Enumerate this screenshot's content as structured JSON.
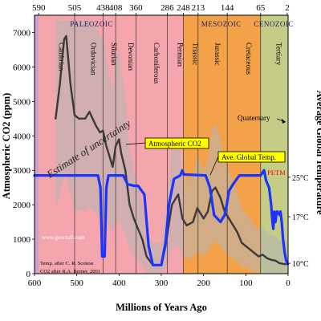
{
  "chart_data": {
    "type": "line",
    "x_axis": {
      "label": "Millions of Years Ago",
      "range": [
        600,
        0
      ],
      "ticks": [
        "600",
        "500",
        "400",
        "300",
        "200",
        "100",
        "0"
      ]
    },
    "y_axis_left": {
      "label": "Atmospheric CO2 (ppm)",
      "range": [
        0,
        7500
      ],
      "ticks": [
        "0",
        "1000",
        "2000",
        "3000",
        "4000",
        "5000",
        "6000",
        "7000"
      ]
    },
    "y_axis_right": {
      "label": "Average Global Temperature",
      "ticks": [
        {
          "label": "25°C",
          "at_ppm": 2800
        },
        {
          "label": "17°C",
          "at_ppm": 1650
        },
        {
          "label": "10°C",
          "at_ppm": 300
        }
      ]
    },
    "top_ticks": [
      {
        "label": "590",
        "x": 590
      },
      {
        "label": "505",
        "x": 505
      },
      {
        "label": "438",
        "x": 438
      },
      {
        "label": "408",
        "x": 408
      },
      {
        "label": "360",
        "x": 360
      },
      {
        "label": "286",
        "x": 286
      },
      {
        "label": "248",
        "x": 248
      },
      {
        "label": "213",
        "x": 213
      },
      {
        "label": "144",
        "x": 144
      },
      {
        "label": "65",
        "x": 65
      },
      {
        "label": "2",
        "x": 2
      }
    ],
    "eras": [
      {
        "label": "PALEOZOIC",
        "from": 590,
        "to": 248,
        "color": "#f4a6ac"
      },
      {
        "label": "MESOZOIC",
        "from": 248,
        "to": 65,
        "color": "#f4a24a"
      },
      {
        "label": "CENOZOIC",
        "from": 65,
        "to": 2,
        "color": "#c4cc86"
      }
    ],
    "periods": [
      {
        "label": "Cambrian",
        "from": 590,
        "to": 505
      },
      {
        "label": "Ordovician",
        "from": 505,
        "to": 438
      },
      {
        "label": "Silurian",
        "from": 438,
        "to": 408
      },
      {
        "label": "Devonian",
        "from": 408,
        "to": 360
      },
      {
        "label": "Carboniferous",
        "from": 360,
        "to": 286
      },
      {
        "label": "Permian",
        "from": 286,
        "to": 248
      },
      {
        "label": "Triassic",
        "from": 248,
        "to": 213
      },
      {
        "label": "Jurassic",
        "from": 213,
        "to": 144
      },
      {
        "label": "Cretaceous",
        "from": 144,
        "to": 65
      },
      {
        "label": "Tertiary",
        "from": 65,
        "to": 2
      }
    ],
    "series": [
      {
        "name": "Atmospheric CO2",
        "color": "#3a3a3a",
        "points": [
          [
            550,
            4500
          ],
          [
            540,
            5500
          ],
          [
            530,
            6800
          ],
          [
            525,
            6900
          ],
          [
            515,
            5500
          ],
          [
            505,
            4600
          ],
          [
            495,
            4500
          ],
          [
            480,
            4500
          ],
          [
            470,
            4700
          ],
          [
            455,
            4300
          ],
          [
            445,
            4100
          ],
          [
            438,
            4150
          ],
          [
            430,
            3700
          ],
          [
            425,
            3500
          ],
          [
            415,
            3100
          ],
          [
            408,
            3700
          ],
          [
            400,
            3900
          ],
          [
            395,
            3500
          ],
          [
            385,
            3000
          ],
          [
            375,
            2000
          ],
          [
            365,
            1600
          ],
          [
            355,
            1300
          ],
          [
            345,
            1000
          ],
          [
            335,
            500
          ],
          [
            320,
            250
          ],
          [
            300,
            250
          ],
          [
            290,
            800
          ],
          [
            285,
            1200
          ],
          [
            275,
            2000
          ],
          [
            260,
            2300
          ],
          [
            250,
            1600
          ],
          [
            240,
            1400
          ],
          [
            225,
            1500
          ],
          [
            215,
            1900
          ],
          [
            200,
            1600
          ],
          [
            190,
            1800
          ],
          [
            180,
            2400
          ],
          [
            172,
            2500
          ],
          [
            160,
            2200
          ],
          [
            150,
            1800
          ],
          [
            140,
            1600
          ],
          [
            130,
            1400
          ],
          [
            120,
            1200
          ],
          [
            110,
            900
          ],
          [
            100,
            800
          ],
          [
            90,
            700
          ],
          [
            80,
            600
          ],
          [
            70,
            500
          ],
          [
            60,
            550
          ],
          [
            50,
            450
          ],
          [
            40,
            400
          ],
          [
            30,
            380
          ],
          [
            20,
            300
          ],
          [
            10,
            280
          ],
          [
            0,
            280
          ]
        ]
      },
      {
        "name": "Ave. Global Temp.",
        "color": "#1a33ff",
        "points": [
          [
            600,
            2850
          ],
          [
            450,
            2850
          ],
          [
            444,
            2500
          ],
          [
            440,
            500
          ],
          [
            434,
            500
          ],
          [
            430,
            2500
          ],
          [
            425,
            2850
          ],
          [
            390,
            2850
          ],
          [
            380,
            2600
          ],
          [
            365,
            2550
          ],
          [
            355,
            2550
          ],
          [
            340,
            2300
          ],
          [
            330,
            800
          ],
          [
            320,
            250
          ],
          [
            300,
            250
          ],
          [
            290,
            900
          ],
          [
            282,
            2000
          ],
          [
            270,
            2750
          ],
          [
            255,
            2850
          ],
          [
            250,
            3000
          ],
          [
            247,
            2880
          ],
          [
            195,
            2850
          ],
          [
            185,
            2500
          ],
          [
            175,
            1700
          ],
          [
            160,
            1500
          ],
          [
            150,
            1700
          ],
          [
            145,
            2000
          ],
          [
            140,
            2400
          ],
          [
            130,
            2600
          ],
          [
            115,
            2850
          ],
          [
            65,
            2850
          ],
          [
            57,
            3000
          ],
          [
            52,
            2700
          ],
          [
            45,
            2500
          ],
          [
            40,
            2000
          ],
          [
            37,
            1500
          ],
          [
            35,
            1300
          ],
          [
            33,
            1800
          ],
          [
            30,
            1500
          ],
          [
            27,
            1800
          ],
          [
            25,
            1800
          ],
          [
            20,
            1700
          ],
          [
            18,
            1800
          ],
          [
            15,
            1500
          ],
          [
            12,
            1000
          ],
          [
            8,
            600
          ],
          [
            5,
            400
          ],
          [
            2,
            300
          ]
        ]
      }
    ],
    "annotations": {
      "estimate": "Estimate of uncertainty",
      "co2_label": "Atmospheric CO2",
      "temp_label": "Ave. Global Temp.",
      "petm": "PETM",
      "quaternary": "Quaternary",
      "site": "www.geocraft.com",
      "credit1": "Temp. after C. R. Scotese",
      "credit2": "CO2 after R.A. Berner, 2001"
    },
    "colors": {
      "paleozoic_bg": "#f4a6ac",
      "paleozoic_left_band": "#c8a0d0",
      "mesozoic_bg": "#f4a24a",
      "cenozoic_bg": "#c4cc86",
      "uncertainty_band": "#b4b4b4",
      "co2_line": "#3a3a3a",
      "temp_line": "#1a33ff",
      "co2_box_bg": "#ffff00",
      "temp_box_bg": "#ffff00"
    }
  }
}
